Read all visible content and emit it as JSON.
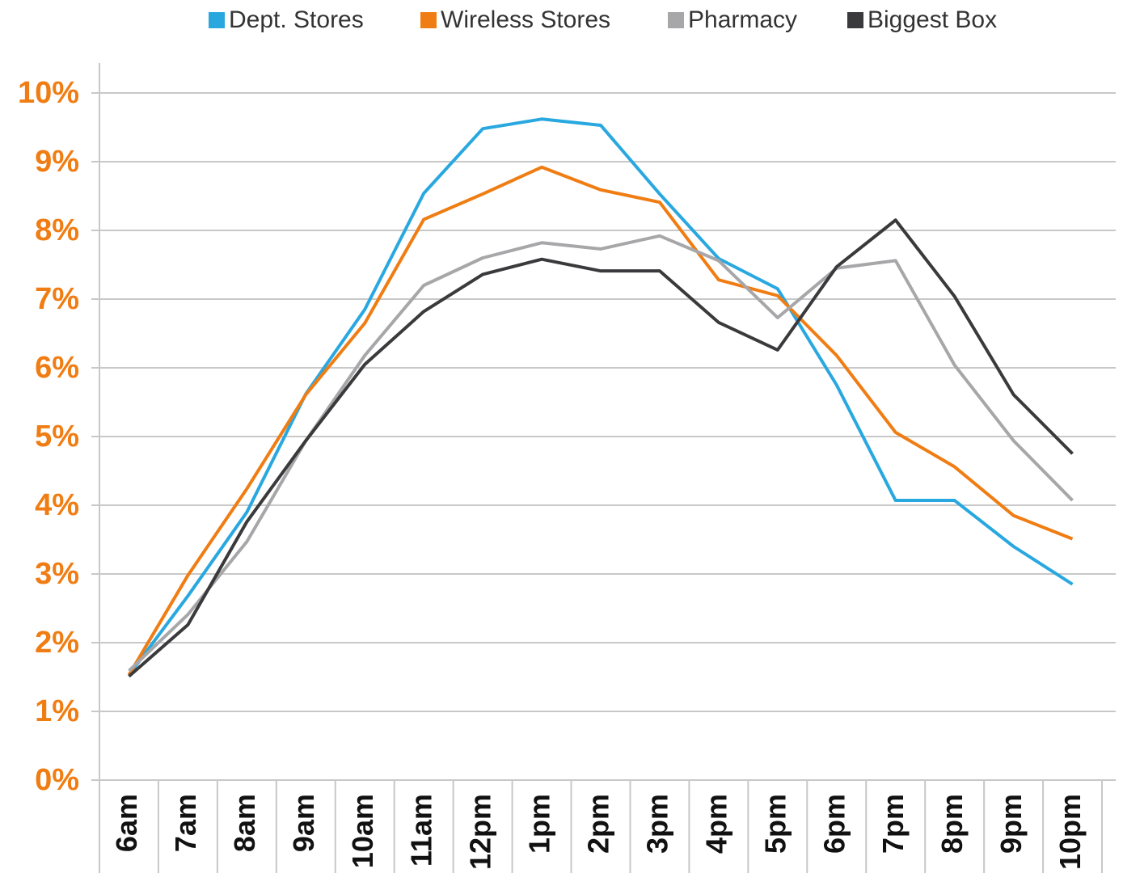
{
  "chart_data": {
    "type": "line",
    "categories": [
      "6am",
      "7am",
      "8am",
      "9am",
      "10am",
      "11am",
      "12pm",
      "1pm",
      "2pm",
      "3pm",
      "4pm",
      "5pm",
      "6pm",
      "7pm",
      "8pm",
      "9pm",
      "10pm"
    ],
    "series": [
      {
        "name": "Dept. Stores",
        "color": "#29a8e0",
        "values": [
          1.53,
          2.68,
          3.9,
          5.62,
          6.85,
          8.54,
          9.48,
          9.62,
          9.53,
          8.53,
          7.59,
          7.15,
          5.75,
          4.07,
          4.07,
          3.4,
          2.85
        ]
      },
      {
        "name": "Wireless Stores",
        "color": "#f07d13",
        "values": [
          1.53,
          2.98,
          4.24,
          5.61,
          6.65,
          8.16,
          8.53,
          8.92,
          8.59,
          8.41,
          7.28,
          7.05,
          6.18,
          5.06,
          4.56,
          3.85,
          3.51
        ]
      },
      {
        "name": "Pharmacy",
        "color": "#a7a7a9",
        "values": [
          1.59,
          2.41,
          3.47,
          4.94,
          6.18,
          7.2,
          7.6,
          7.82,
          7.73,
          7.92,
          7.56,
          6.73,
          7.45,
          7.56,
          6.04,
          4.94,
          4.07
        ]
      },
      {
        "name": "Biggest Box",
        "color": "#3a3a3c",
        "values": [
          1.51,
          2.26,
          3.76,
          4.94,
          6.05,
          6.82,
          7.36,
          7.58,
          7.41,
          7.41,
          6.66,
          6.26,
          7.47,
          8.15,
          7.04,
          5.61,
          4.75
        ]
      }
    ],
    "ylim": [
      0,
      10
    ],
    "yticks": [
      {
        "value": 0,
        "label": "0%"
      },
      {
        "value": 1,
        "label": "1%"
      },
      {
        "value": 2,
        "label": "2%"
      },
      {
        "value": 3,
        "label": "3%"
      },
      {
        "value": 4,
        "label": "4%"
      },
      {
        "value": 5,
        "label": "5%"
      },
      {
        "value": 6,
        "label": "6%"
      },
      {
        "value": 7,
        "label": "7%"
      },
      {
        "value": 8,
        "label": "8%"
      },
      {
        "value": 9,
        "label": "9%"
      },
      {
        "value": 10,
        "label": "10%"
      }
    ],
    "grid": true,
    "legend": "top",
    "tick_color": "#f07d13"
  }
}
